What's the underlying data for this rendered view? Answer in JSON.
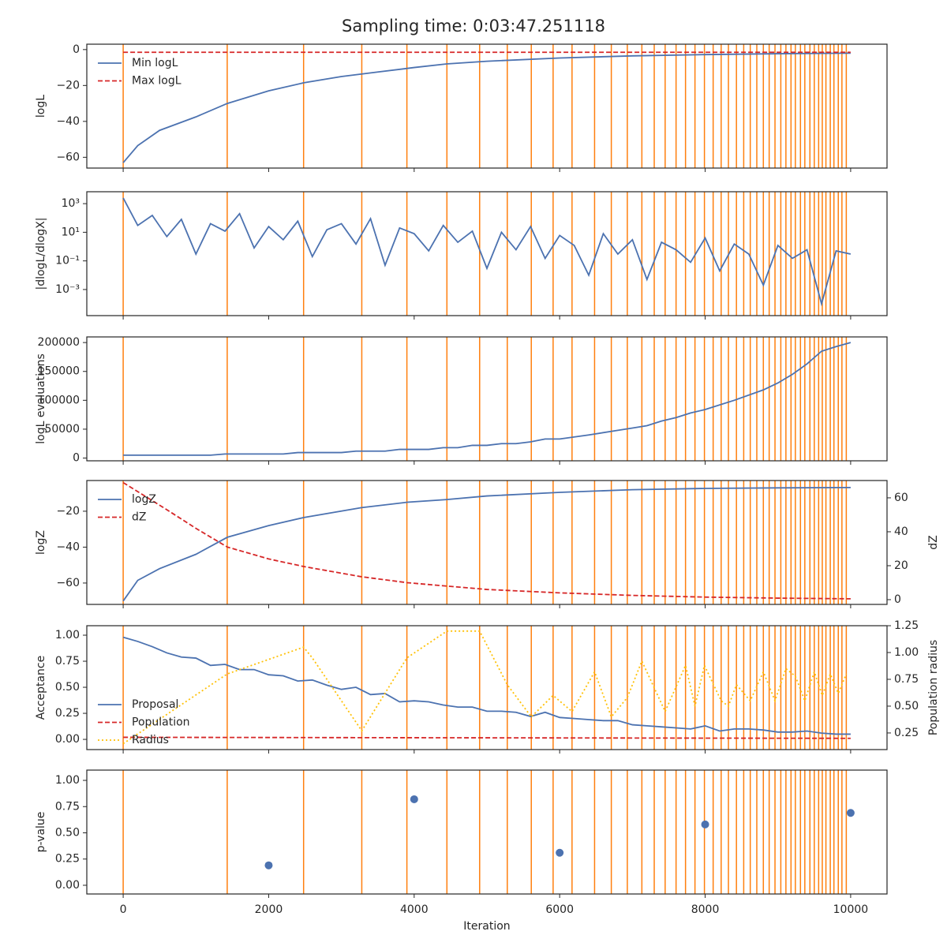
{
  "title": "Sampling time: 0:03:47.251118",
  "vlines": [
    0,
    1430,
    2480,
    3280,
    3900,
    4450,
    4900,
    5280,
    5610,
    5910,
    6170,
    6480,
    6710,
    6930,
    7130,
    7300,
    7450,
    7600,
    7730,
    7860,
    7990,
    8110,
    8220,
    8320,
    8430,
    8530,
    8620,
    8710,
    8800,
    8880,
    8960,
    9040,
    9110,
    9180,
    9240,
    9310,
    9370,
    9440,
    9500,
    9560,
    9610,
    9660,
    9720,
    9770,
    9830,
    9880,
    9940
  ],
  "vline_color": "#ff7f0e",
  "chart_data": [
    {
      "type": "line",
      "ylabel": "logL",
      "ylim": [
        -66,
        3
      ],
      "yticks": [
        {
          "value": 0,
          "label": "0"
        },
        {
          "value": -20,
          "label": "−20"
        },
        {
          "value": -40,
          "label": "−40"
        },
        {
          "value": -60,
          "label": "−60"
        }
      ],
      "legend": "upper left",
      "series": [
        {
          "name": "Min logL",
          "color": "#4c72b0",
          "linestyle": "solid",
          "x": [
            0,
            200,
            500,
            1000,
            1432,
            2000,
            2484,
            3000,
            3500,
            4000,
            4447,
            5000,
            6000,
            7000,
            8000,
            9000,
            10000
          ],
          "values": [
            -63,
            -53.5,
            -45,
            -37.5,
            -30,
            -23,
            -18.5,
            -15,
            -12.5,
            -10,
            -8,
            -6.5,
            -4.7,
            -3.5,
            -2.8,
            -2.3,
            -2
          ]
        },
        {
          "name": "Max logL",
          "color": "#d62728",
          "linestyle": "dashed",
          "x": [
            0,
            10000
          ],
          "values": [
            -1.5,
            -1.5
          ]
        }
      ]
    },
    {
      "type": "line",
      "ylabel": "|dlogL/dlogX|",
      "log": true,
      "ylim": [
        1.5e-05,
        6800
      ],
      "yticks": [
        {
          "value": 1000,
          "label": "10³"
        },
        {
          "value": 10,
          "label": "10¹"
        },
        {
          "value": 0.1,
          "label": "10⁻¹"
        },
        {
          "value": 0.001,
          "label": "10⁻³"
        }
      ],
      "series": [
        {
          "name": null,
          "color": "#4c72b0",
          "linestyle": "solid",
          "x": [
            0,
            200,
            400,
            600,
            800,
            1000,
            1200,
            1400,
            1600,
            1800,
            2000,
            2200,
            2400,
            2600,
            2800,
            3000,
            3200,
            3400,
            3600,
            3800,
            4000,
            4200,
            4400,
            4600,
            4800,
            5000,
            5200,
            5400,
            5600,
            5800,
            6000,
            6200,
            6400,
            6600,
            6800,
            7000,
            7200,
            7400,
            7600,
            7800,
            8000,
            8200,
            8400,
            8600,
            8800,
            9000,
            9200,
            9400,
            9600,
            9800,
            10000
          ],
          "values": [
            2500,
            30,
            150,
            5,
            80,
            0.3,
            40,
            12,
            200,
            0.8,
            25,
            3,
            60,
            0.2,
            15,
            40,
            1.5,
            90,
            0.05,
            20,
            8,
            0.5,
            30,
            2,
            12,
            0.03,
            10,
            0.6,
            25,
            0.15,
            6,
            1.2,
            0.01,
            8,
            0.3,
            3,
            0.005,
            2,
            0.6,
            0.08,
            4,
            0.02,
            1.5,
            0.3,
            0.002,
            1.2,
            0.15,
            0.6,
            0.0001,
            0.5,
            0.3
          ]
        }
      ]
    },
    {
      "type": "line",
      "ylabel": "logL evaluations",
      "ylim": [
        -4750,
        209750
      ],
      "yticks": [
        0,
        50000,
        100000,
        150000,
        200000
      ],
      "series": [
        {
          "name": null,
          "color": "#4c72b0",
          "linestyle": "solid",
          "x": [
            0,
            1200,
            1400,
            2200,
            2400,
            3000,
            3200,
            3600,
            3800,
            4200,
            4400,
            4600,
            4800,
            5000,
            5200,
            5400,
            5600,
            5800,
            6000,
            6400,
            6800,
            7000,
            7200,
            7400,
            7600,
            7800,
            8000,
            8400,
            8800,
            9000,
            9200,
            9400,
            9600,
            9800,
            10000
          ],
          "values": [
            5000,
            5000,
            7000,
            7000,
            9500,
            9500,
            12000,
            12000,
            15000,
            15000,
            18000,
            18000,
            22000,
            22000,
            25000,
            25000,
            28000,
            33000,
            33000,
            40000,
            48000,
            52000,
            56000,
            64000,
            70000,
            78000,
            84000,
            100000,
            118000,
            130000,
            145000,
            163000,
            185000,
            193000,
            200000
          ]
        }
      ]
    },
    {
      "type": "line",
      "ylabel": "logZ",
      "y2label": "dZ",
      "ylim": [
        -71.9,
        -2.9
      ],
      "y2lim": [
        -2.8,
        70.2
      ],
      "yticks": [
        {
          "value": -20,
          "label": "−20"
        },
        {
          "value": -40,
          "label": "−40"
        },
        {
          "value": -60,
          "label": "−60"
        }
      ],
      "y2ticks": [
        0,
        20,
        40,
        60
      ],
      "legend": "upper left",
      "series": [
        {
          "name": "logZ",
          "color": "#4c72b0",
          "linestyle": "solid",
          "x": [
            0,
            200,
            500,
            1000,
            1432,
            2000,
            2484,
            3275,
            3905,
            4447,
            5000,
            6000,
            7000,
            8000,
            9000,
            10000
          ],
          "values": [
            -70,
            -58.5,
            -52,
            -44,
            -34.5,
            -28,
            -23.5,
            -18,
            -15,
            -13.5,
            -11.5,
            -9.5,
            -8,
            -7.3,
            -7,
            -6.8
          ]
        },
        {
          "name": "dZ",
          "color": "#d62728",
          "linestyle": "dashed",
          "axis": "y2",
          "x": [
            0,
            300,
            600,
            1000,
            1432,
            2000,
            2484,
            3275,
            3905,
            4447,
            5000,
            6000,
            7000,
            8000,
            9000,
            10000
          ],
          "values": [
            69,
            61,
            53,
            42,
            31,
            24,
            19.5,
            13.5,
            10,
            8,
            6,
            4,
            2.5,
            1.5,
            0.9,
            0.5
          ]
        }
      ]
    },
    {
      "type": "line",
      "ylabel": "Acceptance",
      "y2label": "Population radius",
      "ylim": [
        -0.098,
        1.091
      ],
      "y2lim": [
        0.095,
        1.25
      ],
      "yticks": [
        {
          "value": 0,
          "label": "0.00"
        },
        {
          "value": 0.25,
          "label": "0.25"
        },
        {
          "value": 0.5,
          "label": "0.50"
        },
        {
          "value": 0.75,
          "label": "0.75"
        },
        {
          "value": 1,
          "label": "1.00"
        }
      ],
      "y2ticks": [
        {
          "value": 0.25,
          "label": "0.25"
        },
        {
          "value": 0.5,
          "label": "0.50"
        },
        {
          "value": 0.75,
          "label": "0.75"
        },
        {
          "value": 1,
          "label": "1.00"
        },
        {
          "value": 1.25,
          "label": "1.25"
        }
      ],
      "legend": "center left",
      "series": [
        {
          "name": "Proposal",
          "color": "#4c72b0",
          "linestyle": "solid",
          "x": [
            0,
            200,
            400,
            600,
            800,
            1000,
            1200,
            1400,
            1600,
            1800,
            2000,
            2200,
            2400,
            2600,
            2800,
            3000,
            3200,
            3400,
            3600,
            3800,
            4000,
            4200,
            4400,
            4600,
            4800,
            5000,
            5200,
            5400,
            5600,
            5800,
            6000,
            6200,
            6400,
            6600,
            6800,
            7000,
            7200,
            7400,
            7600,
            7800,
            8000,
            8200,
            8400,
            8600,
            8800,
            9000,
            9200,
            9400,
            9600,
            9800,
            10000
          ],
          "values": [
            0.98,
            0.94,
            0.89,
            0.83,
            0.79,
            0.78,
            0.71,
            0.72,
            0.67,
            0.67,
            0.62,
            0.61,
            0.56,
            0.57,
            0.52,
            0.48,
            0.5,
            0.43,
            0.44,
            0.36,
            0.37,
            0.36,
            0.33,
            0.31,
            0.31,
            0.27,
            0.27,
            0.26,
            0.22,
            0.26,
            0.21,
            0.2,
            0.19,
            0.18,
            0.18,
            0.14,
            0.13,
            0.12,
            0.11,
            0.1,
            0.13,
            0.08,
            0.1,
            0.1,
            0.09,
            0.07,
            0.07,
            0.08,
            0.06,
            0.05,
            0.05
          ]
        },
        {
          "name": "Population",
          "color": "#d62728",
          "linestyle": "dashed",
          "x": [
            0,
            5000,
            10000
          ],
          "values": [
            0.02,
            0.015,
            0.01
          ]
        },
        {
          "name": "Radius",
          "color": "#ffc107",
          "linestyle": "dotted",
          "axis": "y2",
          "x": [
            0,
            1430,
            2480,
            2600,
            3280,
            3900,
            4450,
            4900,
            5280,
            5610,
            5910,
            6170,
            6480,
            6710,
            6930,
            7130,
            7450,
            7730,
            7860,
            7990,
            8220,
            8320,
            8430,
            8620,
            8800,
            8960,
            9110,
            9240,
            9370,
            9500,
            9610,
            9720,
            9830,
            9940
          ],
          "values": [
            0.15,
            0.8,
            1.05,
            0.95,
            0.27,
            0.95,
            1.2,
            1.2,
            0.7,
            0.4,
            0.6,
            0.45,
            0.82,
            0.4,
            0.58,
            0.92,
            0.45,
            0.88,
            0.5,
            0.88,
            0.55,
            0.5,
            0.7,
            0.55,
            0.82,
            0.55,
            0.85,
            0.78,
            0.55,
            0.82,
            0.6,
            0.8,
            0.62,
            0.8
          ]
        }
      ]
    },
    {
      "type": "scatter",
      "ylabel": "p-value",
      "xlabel": "Iteration",
      "ylim": [
        -0.083,
        1.098
      ],
      "yticks": [
        {
          "value": 0,
          "label": "0.00"
        },
        {
          "value": 0.25,
          "label": "0.25"
        },
        {
          "value": 0.5,
          "label": "0.50"
        },
        {
          "value": 0.75,
          "label": "0.75"
        },
        {
          "value": 1,
          "label": "1.00"
        }
      ],
      "xlim": [
        -500,
        10500
      ],
      "xticks": [
        0,
        2000,
        4000,
        6000,
        8000,
        10000
      ],
      "series": [
        {
          "name": null,
          "color": "#4c72b0",
          "x": [
            2000,
            4000,
            6000,
            8000,
            10000
          ],
          "values": [
            0.19,
            0.82,
            0.31,
            0.58,
            0.69
          ]
        }
      ]
    }
  ]
}
